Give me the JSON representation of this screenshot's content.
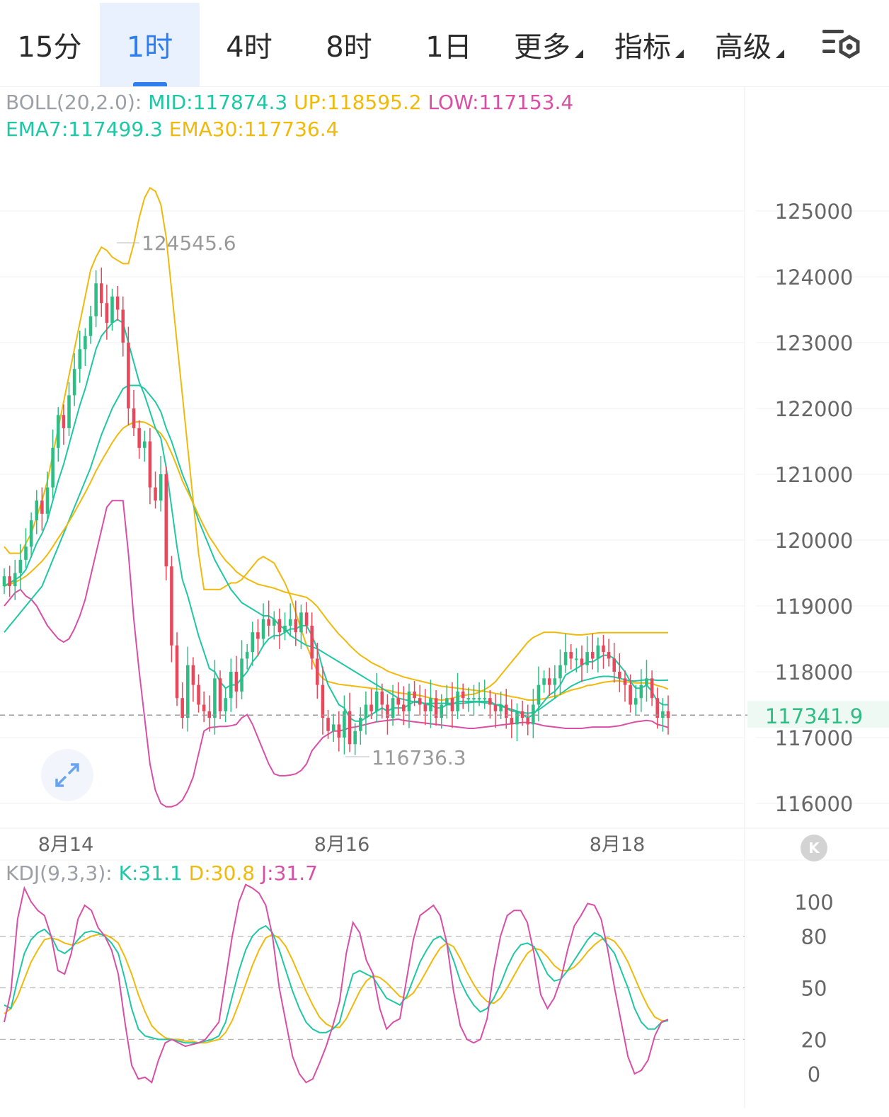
{
  "tabs": [
    {
      "label": "15分"
    },
    {
      "label": "1时",
      "active": true
    },
    {
      "label": "4时"
    },
    {
      "label": "8时"
    },
    {
      "label": "1日"
    },
    {
      "label": "更多",
      "dropdown": true
    },
    {
      "label": "指标",
      "dropdown": true
    },
    {
      "label": "高级",
      "dropdown": true
    }
  ],
  "icons": {
    "settings": "chart-settings-icon",
    "expand": "expand-icon",
    "k": "k-badge-icon"
  },
  "k_badge": "K",
  "colors": {
    "up": "#2ebd85",
    "down": "#e8485b",
    "mid": "#20c7a4",
    "up_band": "#f0b90b",
    "low_band": "#d94fa6",
    "ema7": "#20c7a4",
    "ema30": "#f0b90b",
    "k": "#20c7a4",
    "d": "#f0b90b",
    "j": "#d94fa6",
    "accent": "#2f7ef0"
  },
  "boll_legend": {
    "name": "BOLL(20,2.0):",
    "mid": "MID:117874.3",
    "up": "UP:118595.2",
    "low": "LOW:117153.4"
  },
  "ema_legend": {
    "ema7": "EMA7:117499.3",
    "ema30": "EMA30:117736.4"
  },
  "kdj_legend": {
    "name": "KDJ(9,3,3):",
    "k": "K:31.1",
    "d": "D:30.8",
    "j": "J:31.7"
  },
  "chart_data": [
    {
      "type": "candlestick",
      "interval": "1时",
      "y_ticks": [
        "125000",
        "124000",
        "123000",
        "122000",
        "121000",
        "120000",
        "119000",
        "118000",
        "117000",
        "116000"
      ],
      "ylim": [
        115800,
        125600
      ],
      "x_labels": [
        "8月14",
        "8月16",
        "8月18"
      ],
      "current_price": "117341.9",
      "max_label": "124545.6",
      "min_label": "116736.3",
      "close_series": [
        119450,
        119300,
        119500,
        119700,
        119900,
        120300,
        120600,
        120400,
        120800,
        121400,
        121900,
        121700,
        122200,
        122600,
        122900,
        123100,
        123400,
        123900,
        123600,
        123300,
        123700,
        123500,
        123000,
        122000,
        121700,
        121400,
        121500,
        120800,
        120600,
        121000,
        119600,
        118400,
        117600,
        117300,
        118100,
        117800,
        117500,
        117400,
        117300,
        117900,
        117400,
        117600,
        118000,
        117700,
        118200,
        118300,
        118600,
        118500,
        118800,
        118700,
        118800,
        118600,
        118700,
        118800,
        118600,
        118900,
        118700,
        118200,
        117800,
        117300,
        117100,
        117200,
        117000,
        117400,
        116900,
        117100,
        117300,
        117500,
        117400,
        117700,
        117500,
        117300,
        117600,
        117500,
        117400,
        117700,
        117600,
        117500,
        117400,
        117600,
        117300,
        117500,
        117600,
        117400,
        117700,
        117600,
        117600,
        117600,
        117600,
        117600,
        117500,
        117400,
        117500,
        117300,
        117200,
        117400,
        117300,
        117200,
        117500,
        117800,
        117900,
        117800,
        117900,
        118100,
        118300,
        118200,
        118200,
        118100,
        118300,
        118200,
        118400,
        118300,
        118200,
        118000,
        117900,
        117800,
        117500,
        117600,
        117800,
        117900,
        117600,
        117300,
        117400,
        117300
      ],
      "mid_series": [
        118600,
        118700,
        118800,
        118900,
        119000,
        119100,
        119200,
        119300,
        119500,
        119700,
        119900,
        120100,
        120300,
        120500,
        120700,
        120900,
        121100,
        121350,
        121600,
        121800,
        122000,
        122150,
        122300,
        122350,
        122350,
        122350,
        122300,
        122200,
        122100,
        121950,
        121700,
        121500,
        121250,
        121000,
        120800,
        120550,
        120300,
        120100,
        119900,
        119700,
        119550,
        119400,
        119250,
        119150,
        119050,
        119000,
        118950,
        118900,
        118850,
        118850,
        118800,
        118700,
        118650,
        118550,
        118500,
        118450,
        118400,
        118380,
        118350,
        118300,
        118250,
        118200,
        118150,
        118100,
        118050,
        118000,
        117950,
        117900,
        117850,
        117800,
        117750,
        117700,
        117650,
        117600,
        117580,
        117560,
        117540,
        117530,
        117520,
        117520,
        117520,
        117520,
        117520,
        117520,
        117520,
        117520,
        117530,
        117540,
        117540,
        117530,
        117520,
        117500,
        117480,
        117450,
        117430,
        117400,
        117380,
        117370,
        117380,
        117420,
        117480,
        117540,
        117600,
        117660,
        117720,
        117780,
        117820,
        117860,
        117880,
        117900,
        117920,
        117930,
        117930,
        117920,
        117900,
        117880,
        117860,
        117860,
        117870,
        117880,
        117880,
        117870,
        117870,
        117874
      ],
      "up_series": [
        119900,
        119800,
        119800,
        119800,
        119950,
        120100,
        120350,
        120600,
        120900,
        121300,
        121700,
        122100,
        122500,
        122900,
        123300,
        123700,
        124100,
        124300,
        124450,
        124400,
        124300,
        124250,
        124200,
        124200,
        124500,
        124900,
        125200,
        125350,
        125300,
        125100,
        124600,
        123800,
        123000,
        122200,
        121400,
        120600,
        119800,
        119250,
        119250,
        119250,
        119250,
        119300,
        119350,
        119350,
        119400,
        119500,
        119600,
        119700,
        119750,
        119700,
        119650,
        119500,
        119350,
        119150,
        118900,
        118650,
        118400,
        118200,
        118000,
        117900,
        117850,
        117830,
        117810,
        117800,
        117790,
        117780,
        117770,
        117760,
        117750,
        117740,
        117730,
        117720,
        117700,
        117680,
        117670,
        117660,
        117650,
        117640,
        117620,
        117600,
        117580,
        117570,
        117580,
        117600,
        117620,
        117640,
        117650,
        117660,
        117690,
        117730,
        117780,
        117850,
        117950,
        118050,
        118150,
        118250,
        118350,
        118450,
        118520,
        118560,
        118600,
        118600,
        118600,
        118590,
        118580,
        118570,
        118560,
        118560,
        118570,
        118580,
        118590,
        118595,
        118595,
        118595,
        118595,
        118595,
        118595,
        118595,
        118595,
        118595,
        118595,
        118595,
        118595,
        118595
      ],
      "low_series": [
        119000,
        119100,
        119200,
        119250,
        119150,
        119100,
        119000,
        118850,
        118700,
        118600,
        118500,
        118450,
        118500,
        118650,
        118850,
        119100,
        119450,
        119800,
        120150,
        120500,
        120600,
        120600,
        120600,
        119800,
        118800,
        118000,
        117300,
        116600,
        116200,
        116000,
        115950,
        115950,
        115980,
        116050,
        116200,
        116400,
        116750,
        117100,
        117150,
        117160,
        117170,
        117170,
        117180,
        117200,
        117300,
        117350,
        117200,
        117000,
        116800,
        116600,
        116450,
        116420,
        116420,
        116430,
        116450,
        116500,
        116600,
        116800,
        116900,
        117000,
        117050,
        117100,
        117100,
        117120,
        117150,
        117160,
        117180,
        117200,
        117220,
        117240,
        117250,
        117260,
        117270,
        117280,
        117260,
        117250,
        117240,
        117230,
        117220,
        117210,
        117200,
        117190,
        117180,
        117170,
        117160,
        117150,
        117140,
        117140,
        117150,
        117160,
        117170,
        117180,
        117190,
        117200,
        117210,
        117220,
        117230,
        117230,
        117220,
        117200,
        117180,
        117170,
        117160,
        117150,
        117140,
        117140,
        117140,
        117140,
        117150,
        117160,
        117160,
        117160,
        117160,
        117170,
        117180,
        117200,
        117220,
        117240,
        117250,
        117260,
        117250,
        117200,
        117180,
        117153
      ],
      "ema7_series": [
        119300,
        119350,
        119400,
        119450,
        119550,
        119750,
        119950,
        120100,
        120300,
        120600,
        120900,
        121150,
        121450,
        121750,
        122050,
        122300,
        122600,
        122900,
        123100,
        123200,
        123300,
        123350,
        123300,
        123000,
        122700,
        122400,
        122200,
        121950,
        121700,
        121550,
        121100,
        120500,
        119900,
        119400,
        119150,
        118850,
        118550,
        118300,
        118050,
        118000,
        117850,
        117750,
        117800,
        117800,
        117900,
        118000,
        118150,
        118250,
        118400,
        118500,
        118550,
        118550,
        118600,
        118650,
        118650,
        118700,
        118700,
        118550,
        118350,
        118050,
        117800,
        117650,
        117500,
        117450,
        117300,
        117250,
        117250,
        117300,
        117350,
        117400,
        117450,
        117400,
        117450,
        117450,
        117450,
        117500,
        117550,
        117550,
        117500,
        117500,
        117450,
        117450,
        117500,
        117500,
        117550,
        117550,
        117550,
        117550,
        117550,
        117550,
        117550,
        117500,
        117500,
        117450,
        117400,
        117400,
        117350,
        117300,
        117350,
        117450,
        117550,
        117650,
        117700,
        117800,
        117950,
        118000,
        118050,
        118100,
        118150,
        118150,
        118200,
        118250,
        118250,
        118200,
        118100,
        118000,
        117850,
        117750,
        117750,
        117800,
        117700,
        117550,
        117500,
        117499
      ],
      "ema30_series": [
        119300,
        119330,
        119360,
        119400,
        119450,
        119520,
        119600,
        119680,
        119780,
        119900,
        120030,
        120150,
        120280,
        120420,
        120570,
        120720,
        120880,
        121050,
        121200,
        121340,
        121480,
        121600,
        121700,
        121750,
        121790,
        121800,
        121790,
        121750,
        121690,
        121620,
        121500,
        121320,
        121120,
        120900,
        120730,
        120560,
        120380,
        120210,
        120050,
        119930,
        119800,
        119690,
        119610,
        119520,
        119460,
        119410,
        119370,
        119330,
        119310,
        119290,
        119270,
        119240,
        119210,
        119190,
        119170,
        119150,
        119130,
        119070,
        118990,
        118880,
        118770,
        118670,
        118570,
        118490,
        118400,
        118320,
        118250,
        118200,
        118140,
        118100,
        118060,
        118010,
        117980,
        117950,
        117920,
        117900,
        117880,
        117860,
        117840,
        117820,
        117800,
        117780,
        117770,
        117760,
        117750,
        117740,
        117730,
        117720,
        117710,
        117700,
        117690,
        117670,
        117660,
        117640,
        117620,
        117610,
        117590,
        117570,
        117570,
        117580,
        117590,
        117610,
        117630,
        117650,
        117690,
        117720,
        117740,
        117760,
        117790,
        117800,
        117820,
        117840,
        117850,
        117860,
        117860,
        117850,
        117840,
        117830,
        117830,
        117830,
        117820,
        117790,
        117770,
        117736
      ],
      "legend": [
        "BOLL MID",
        "BOLL UP",
        "BOLL LOW",
        "EMA7",
        "EMA30"
      ]
    },
    {
      "type": "line",
      "name": "KDJ(9,3,3)",
      "y_ticks": [
        "100",
        "80",
        "50",
        "20",
        "0"
      ],
      "ylim": [
        -3,
        112
      ],
      "dashed_levels": [
        80,
        50,
        20
      ],
      "series": [
        {
          "name": "K",
          "values": [
            40,
            38,
            55,
            70,
            78,
            82,
            84,
            80,
            72,
            70,
            73,
            78,
            82,
            83,
            82,
            80,
            76,
            70,
            55,
            38,
            26,
            22,
            21,
            20,
            20,
            20,
            19,
            18,
            18,
            18,
            19,
            20,
            22,
            30,
            45,
            60,
            72,
            80,
            84,
            86,
            82,
            72,
            60,
            48,
            38,
            30,
            26,
            24,
            24,
            26,
            30,
            45,
            58,
            60,
            58,
            56,
            50,
            44,
            42,
            40,
            45,
            55,
            65,
            72,
            78,
            80,
            76,
            66,
            54,
            46,
            40,
            36,
            38,
            44,
            52,
            62,
            70,
            75,
            76,
            74,
            66,
            58,
            54,
            55,
            60,
            66,
            72,
            78,
            82,
            80,
            75,
            70,
            60,
            50,
            38,
            30,
            26,
            26,
            30,
            31
          ]
        },
        {
          "name": "D",
          "values": [
            35,
            38,
            45,
            55,
            65,
            72,
            78,
            79,
            78,
            76,
            75,
            76,
            78,
            80,
            81,
            81,
            79,
            76,
            68,
            58,
            46,
            36,
            28,
            24,
            21,
            20,
            20,
            19,
            19,
            18,
            18,
            19,
            20,
            24,
            31,
            41,
            52,
            63,
            72,
            79,
            81,
            79,
            74,
            66,
            57,
            48,
            40,
            33,
            29,
            27,
            27,
            32,
            40,
            48,
            54,
            57,
            56,
            53,
            49,
            45,
            44,
            47,
            53,
            60,
            67,
            73,
            76,
            74,
            67,
            59,
            52,
            46,
            42,
            41,
            44,
            50,
            57,
            64,
            70,
            73,
            72,
            68,
            63,
            60,
            60,
            62,
            66,
            71,
            75,
            78,
            79,
            77,
            72,
            65,
            56,
            47,
            39,
            33,
            31,
            30.8
          ]
        },
        {
          "name": "J",
          "values": [
            30,
            48,
            90,
            108,
            100,
            95,
            92,
            80,
            60,
            58,
            70,
            90,
            98,
            95,
            85,
            80,
            72,
            58,
            30,
            5,
            -3,
            -2,
            -5,
            8,
            18,
            20,
            18,
            16,
            17,
            18,
            20,
            25,
            30,
            55,
            80,
            100,
            110,
            108,
            105,
            98,
            80,
            50,
            30,
            10,
            0,
            -5,
            -3,
            6,
            16,
            28,
            42,
            70,
            88,
            82,
            66,
            58,
            38,
            26,
            30,
            32,
            55,
            78,
            92,
            95,
            98,
            92,
            76,
            48,
            28,
            20,
            18,
            20,
            32,
            60,
            80,
            92,
            95,
            95,
            88,
            70,
            46,
            38,
            44,
            55,
            72,
            86,
            92,
            99,
            98,
            90,
            72,
            50,
            30,
            10,
            0,
            2,
            8,
            22,
            30,
            31.7
          ]
        }
      ],
      "x_labels": [
        "8月14",
        "8月16",
        "8月18"
      ]
    }
  ]
}
